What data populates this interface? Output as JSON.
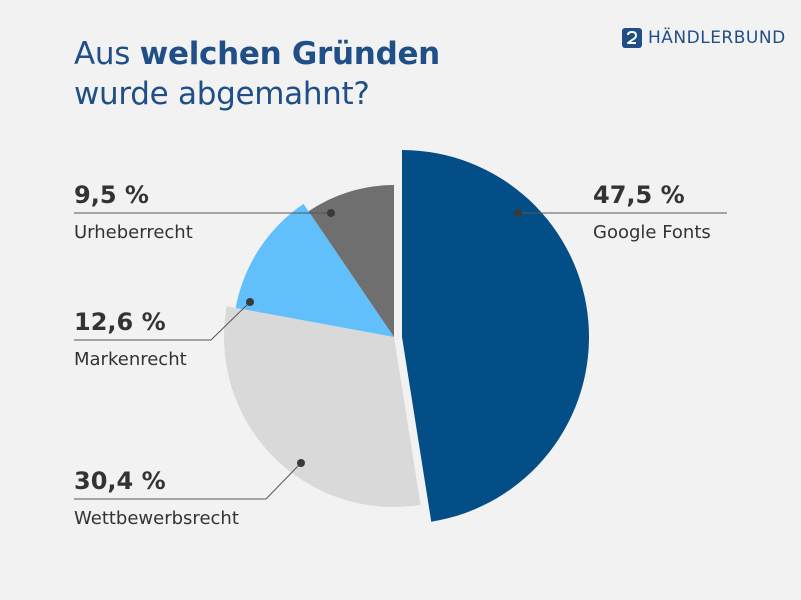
{
  "header": {
    "title_prefix": "Aus ",
    "title_bold": "welchen Gründen",
    "title_line2": "wurde abgemahnt?"
  },
  "logo": {
    "text": "HÄNDLERBUND",
    "icon": "handlerbund-logo-icon",
    "color": "#1f4f86"
  },
  "chart_data": {
    "type": "pie",
    "title": "Aus welchen Gründen wurde abgemahnt?",
    "categories": [
      "Google Fonts",
      "Wettbewerbsrecht",
      "Markenrecht",
      "Urheberrecht"
    ],
    "values": [
      47.5,
      30.4,
      12.6,
      9.5
    ],
    "value_labels": [
      "47,5 %",
      "30,4 %",
      "12,6 %",
      "9,5 %"
    ],
    "colors": [
      "#044e88",
      "#d9d9d9",
      "#61c0fb",
      "#6f6f6f"
    ],
    "legend": "callout labels"
  }
}
